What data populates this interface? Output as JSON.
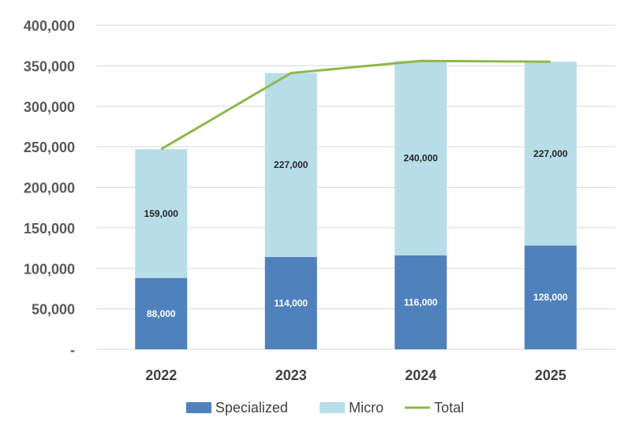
{
  "chart_data": {
    "type": "bar",
    "stacked": true,
    "categories": [
      "2022",
      "2023",
      "2024",
      "2025"
    ],
    "series": [
      {
        "name": "Specialized",
        "kind": "bar",
        "values": [
          88000,
          114000,
          116000,
          128000
        ],
        "color": "#4f81bd",
        "labels": [
          "88,000",
          "114,000",
          "116,000",
          "128,000"
        ],
        "label_color": "#ffffff"
      },
      {
        "name": "Micro",
        "kind": "bar",
        "values": [
          159000,
          227000,
          240000,
          227000
        ],
        "color": "#b7dde8",
        "labels": [
          "159,000",
          "227,000",
          "240,000",
          "227,000"
        ],
        "label_color": "#262626"
      },
      {
        "name": "Total",
        "kind": "line",
        "values": [
          247000,
          341000,
          356000,
          355000
        ],
        "color": "#8db84a"
      }
    ],
    "y_ticks": [
      {
        "value": 0,
        "label": "-"
      },
      {
        "value": 50000,
        "label": "50,000"
      },
      {
        "value": 100000,
        "label": "100,000"
      },
      {
        "value": 150000,
        "label": "150,000"
      },
      {
        "value": 200000,
        "label": "200,000"
      },
      {
        "value": 250000,
        "label": "250,000"
      },
      {
        "value": 300000,
        "label": "300,000"
      },
      {
        "value": 350000,
        "label": "350,000"
      },
      {
        "value": 400000,
        "label": "400,000"
      }
    ],
    "ylim": [
      0,
      400000
    ],
    "title": "",
    "xlabel": "",
    "ylabel": "",
    "grid": true,
    "legend_position": "bottom"
  }
}
